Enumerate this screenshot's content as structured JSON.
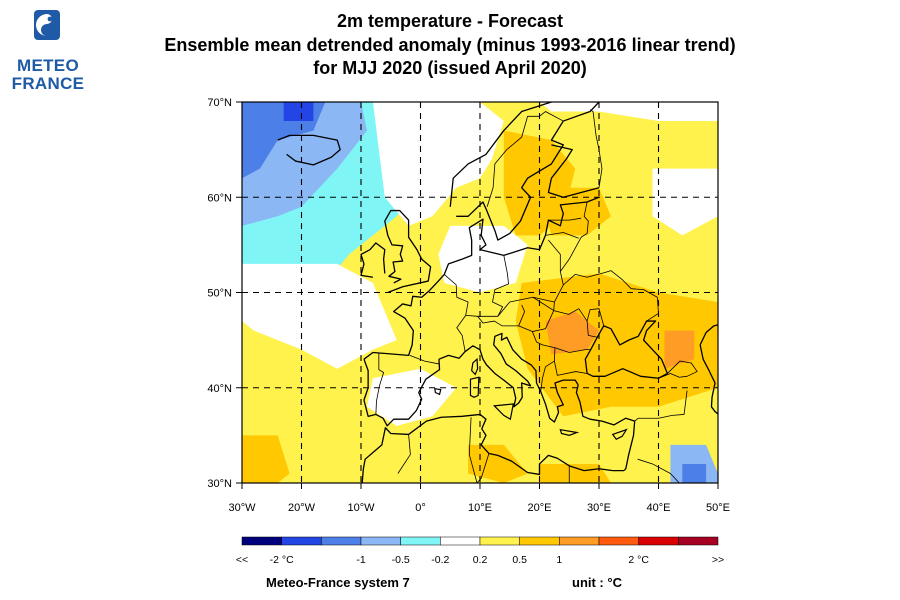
{
  "logo": {
    "line1": "METEO",
    "line2": "FRANCE",
    "color": "#1f5aa6"
  },
  "title": {
    "line1": "2m temperature   -   Forecast",
    "line2": "Ensemble mean detrended anomaly (minus 1993-2016 linear trend)",
    "line3": "for MJJ 2020   (issued April 2020)"
  },
  "map": {
    "lon_range": [
      -30,
      50
    ],
    "lat_range": [
      30,
      70
    ],
    "lon_ticks": [
      "30°W",
      "20°W",
      "10°W",
      "0°",
      "10°E",
      "20°E",
      "30°E",
      "40°E",
      "50°E"
    ],
    "lat_ticks": [
      "30°N",
      "40°N",
      "50°N",
      "60°N",
      "70°N"
    ],
    "gridlines": "dashed"
  },
  "legend": {
    "colors": [
      "#00007c",
      "#2345e5",
      "#4d7fe8",
      "#8bb7f5",
      "#80f5f5",
      "#ffffff",
      "#fff24d",
      "#ffc800",
      "#ff9c26",
      "#ff5a0e",
      "#d90000",
      "#a50021"
    ],
    "labels": [
      "<<",
      "-2 °C",
      "-1",
      "-0.5",
      "-0.2",
      "0.2",
      "0.5",
      "1",
      "2 °C",
      ">>"
    ]
  },
  "footer": {
    "system": "Meteo-France system 7",
    "unit": "unit :  °C"
  }
}
